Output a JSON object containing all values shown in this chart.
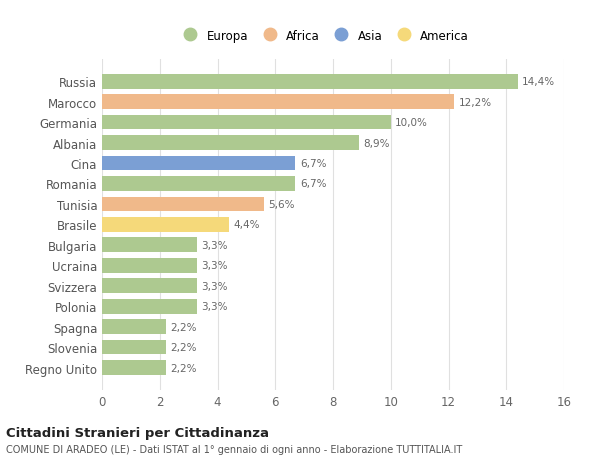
{
  "countries": [
    "Russia",
    "Marocco",
    "Germania",
    "Albania",
    "Cina",
    "Romania",
    "Tunisia",
    "Brasile",
    "Bulgaria",
    "Ucraina",
    "Svizzera",
    "Polonia",
    "Spagna",
    "Slovenia",
    "Regno Unito"
  ],
  "values": [
    14.4,
    12.2,
    10.0,
    8.9,
    6.7,
    6.7,
    5.6,
    4.4,
    3.3,
    3.3,
    3.3,
    3.3,
    2.2,
    2.2,
    2.2
  ],
  "labels": [
    "14,4%",
    "12,2%",
    "10,0%",
    "8,9%",
    "6,7%",
    "6,7%",
    "5,6%",
    "4,4%",
    "3,3%",
    "3,3%",
    "3,3%",
    "3,3%",
    "2,2%",
    "2,2%",
    "2,2%"
  ],
  "continents": [
    "Europa",
    "Africa",
    "Europa",
    "Europa",
    "Asia",
    "Europa",
    "Africa",
    "America",
    "Europa",
    "Europa",
    "Europa",
    "Europa",
    "Europa",
    "Europa",
    "Europa"
  ],
  "continent_colors": {
    "Europa": "#adc990",
    "Africa": "#f0b98a",
    "Asia": "#7b9fd4",
    "America": "#f5d97a"
  },
  "legend_order": [
    "Europa",
    "Africa",
    "Asia",
    "America"
  ],
  "title": "Cittadini Stranieri per Cittadinanza",
  "subtitle": "COMUNE DI ARADEO (LE) - Dati ISTAT al 1° gennaio di ogni anno - Elaborazione TUTTITALIA.IT",
  "xlim": [
    0,
    16
  ],
  "xticks": [
    0,
    2,
    4,
    6,
    8,
    10,
    12,
    14,
    16
  ],
  "background_color": "#ffffff",
  "grid_color": "#e0e0e0",
  "bar_height": 0.72
}
